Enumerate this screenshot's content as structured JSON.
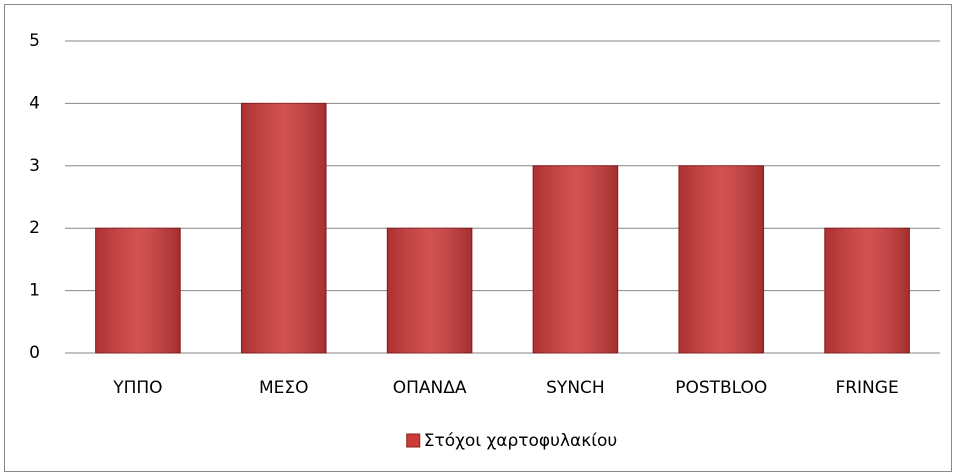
{
  "chart_data": {
    "type": "bar",
    "categories": [
      "ΥΠΠΟ",
      "ΜΕΣΟ",
      "ΟΠΑΝΔΑ",
      "SYNCH",
      "POSTBLOO",
      "FRINGE"
    ],
    "series": [
      {
        "name": "Στόχοι χαρτοφυλακίου",
        "color": "#cc3a3a",
        "values": [
          2,
          4,
          2,
          3,
          3,
          2
        ]
      }
    ],
    "ylim": [
      0,
      5
    ],
    "yticks": [
      0,
      1,
      2,
      3,
      4,
      5
    ],
    "grid": true,
    "legend": "bottom"
  }
}
